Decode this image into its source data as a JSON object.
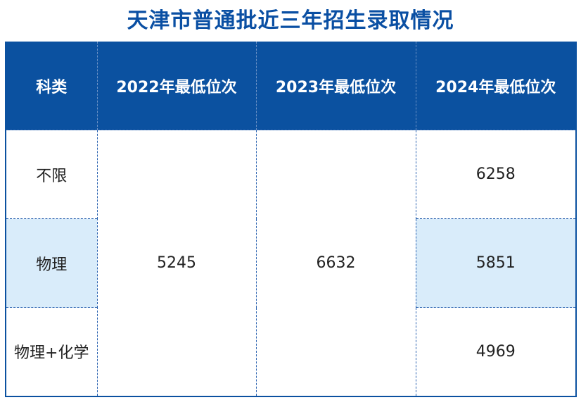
{
  "title": "天津市普通批近三年招生录取情况",
  "table": {
    "headers": [
      "科类",
      "2022年最低位次",
      "2023年最低位次",
      "2024年最低位次"
    ],
    "rows": [
      {
        "category": "不限",
        "y2024": "6258"
      },
      {
        "category": "物理",
        "y2024": "5851"
      },
      {
        "category": "物理+化学",
        "y2024": "4969"
      }
    ],
    "merged_2022": "5245",
    "merged_2023": "6632"
  },
  "colors": {
    "header_bg": "#0b51a0",
    "title": "#0a4fa3",
    "highlight_row": "#d9ecfa"
  }
}
